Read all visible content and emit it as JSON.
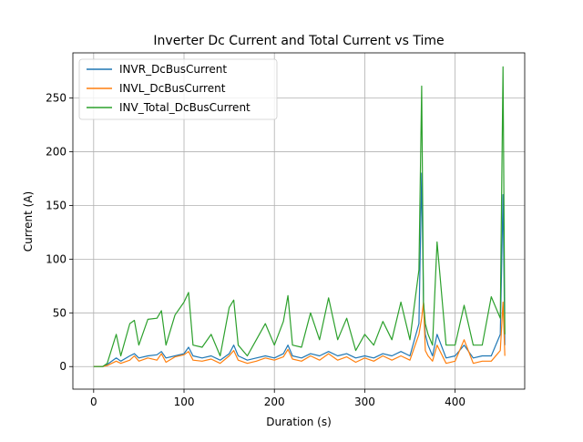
{
  "chart_data": {
    "type": "line",
    "title": "Inverter Dc Current and Total Current vs Time",
    "xlabel": "Duration (s)",
    "ylabel": "Current (A)",
    "xlim": [
      -23,
      477
    ],
    "ylim": [
      -21,
      292
    ],
    "xticks": [
      0,
      100,
      200,
      300,
      400
    ],
    "yticks": [
      0,
      50,
      100,
      150,
      200,
      250
    ],
    "grid": true,
    "legend_position": "top-left",
    "colors": {
      "INVR": "#1f77b4",
      "INVL": "#ff7f0e",
      "TOTAL": "#2ca02c"
    },
    "series": [
      {
        "name": "INVR_DcBusCurrent",
        "color": "#1f77b4",
        "x": [
          0,
          10,
          15,
          25,
          30,
          40,
          45,
          50,
          60,
          70,
          75,
          80,
          90,
          100,
          105,
          110,
          120,
          130,
          140,
          150,
          155,
          160,
          170,
          180,
          190,
          200,
          210,
          215,
          220,
          230,
          240,
          250,
          260,
          270,
          280,
          290,
          300,
          310,
          320,
          330,
          340,
          350,
          360,
          363,
          365,
          367,
          370,
          375,
          380,
          390,
          400,
          410,
          420,
          430,
          440,
          450,
          453,
          455
        ],
        "y": [
          0,
          0,
          2,
          8,
          5,
          10,
          12,
          8,
          10,
          11,
          14,
          8,
          10,
          12,
          18,
          10,
          8,
          10,
          6,
          12,
          20,
          10,
          6,
          8,
          10,
          8,
          12,
          20,
          10,
          8,
          12,
          10,
          14,
          10,
          12,
          8,
          10,
          8,
          12,
          10,
          14,
          10,
          40,
          180,
          60,
          30,
          20,
          10,
          30,
          8,
          10,
          20,
          8,
          10,
          10,
          30,
          160,
          20
        ]
      },
      {
        "name": "INVL_DcBusCurrent",
        "color": "#ff7f0e",
        "x": [
          0,
          10,
          15,
          25,
          30,
          40,
          45,
          50,
          60,
          70,
          75,
          80,
          90,
          100,
          105,
          110,
          120,
          130,
          140,
          150,
          155,
          160,
          170,
          180,
          190,
          200,
          210,
          215,
          220,
          230,
          240,
          250,
          260,
          270,
          280,
          290,
          300,
          310,
          320,
          330,
          340,
          350,
          360,
          363,
          365,
          367,
          370,
          375,
          380,
          390,
          400,
          410,
          420,
          430,
          440,
          450,
          453,
          455
        ],
        "y": [
          0,
          0,
          1,
          5,
          3,
          6,
          10,
          5,
          8,
          6,
          12,
          4,
          9,
          11,
          14,
          6,
          5,
          7,
          3,
          10,
          15,
          6,
          3,
          5,
          8,
          6,
          9,
          16,
          7,
          5,
          10,
          6,
          12,
          6,
          9,
          4,
          8,
          5,
          10,
          6,
          10,
          6,
          30,
          45,
          60,
          15,
          10,
          5,
          20,
          3,
          5,
          25,
          3,
          5,
          5,
          15,
          60,
          10
        ]
      },
      {
        "name": "INV_Total_DcBusCurrent",
        "color": "#2ca02c",
        "x": [
          0,
          10,
          15,
          25,
          30,
          40,
          45,
          50,
          60,
          70,
          75,
          80,
          90,
          100,
          105,
          110,
          120,
          130,
          140,
          150,
          155,
          160,
          170,
          180,
          190,
          200,
          210,
          215,
          220,
          230,
          240,
          250,
          260,
          270,
          280,
          290,
          300,
          310,
          320,
          330,
          340,
          350,
          360,
          363,
          365,
          367,
          370,
          375,
          380,
          390,
          400,
          410,
          420,
          430,
          440,
          450,
          453,
          455
        ],
        "y": [
          0,
          0,
          3,
          30,
          10,
          40,
          43,
          20,
          44,
          45,
          52,
          20,
          48,
          60,
          69,
          20,
          18,
          30,
          10,
          55,
          62,
          20,
          10,
          25,
          40,
          20,
          42,
          66,
          20,
          18,
          50,
          25,
          64,
          25,
          45,
          15,
          30,
          20,
          42,
          25,
          60,
          25,
          90,
          261,
          60,
          40,
          30,
          20,
          116,
          20,
          20,
          57,
          20,
          20,
          65,
          45,
          279,
          30
        ]
      }
    ]
  }
}
